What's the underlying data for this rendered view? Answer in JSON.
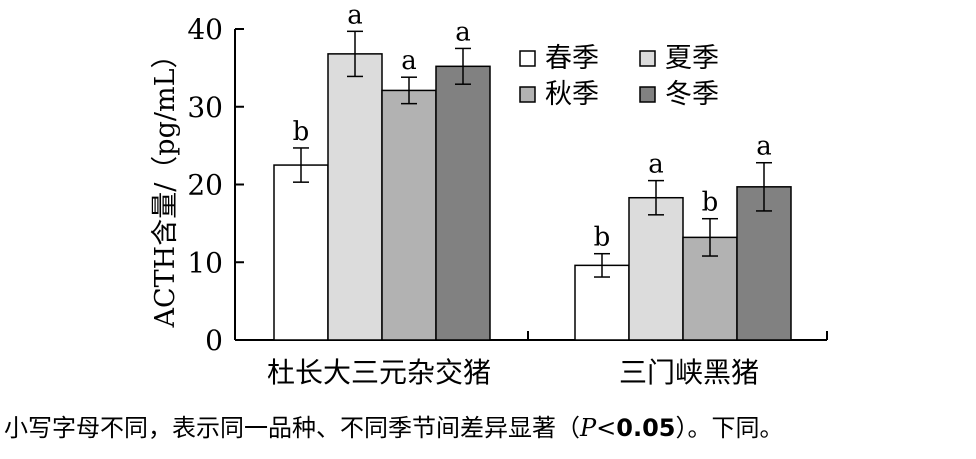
{
  "chart_data": {
    "type": "bar",
    "categories": [
      "杜长大三元杂交猪",
      "三门峡黑猪"
    ],
    "ylabel": "ACTH含量/（pg/mL）",
    "ylim": [
      0,
      40
    ],
    "yticks": [
      0,
      10,
      20,
      30,
      40
    ],
    "grid": false,
    "legend_position": "top-right",
    "series": [
      {
        "name": "春季",
        "color": "#ffffff",
        "values": [
          22.5,
          9.6
        ],
        "errors": [
          2.2,
          1.5
        ],
        "letters": [
          "b",
          "b"
        ]
      },
      {
        "name": "夏季",
        "color": "#dcdcdc",
        "values": [
          36.8,
          18.3
        ],
        "errors": [
          2.9,
          2.2
        ],
        "letters": [
          "a",
          "a"
        ]
      },
      {
        "name": "秋季",
        "color": "#b2b2b2",
        "values": [
          32.1,
          13.2
        ],
        "errors": [
          1.7,
          2.4
        ],
        "letters": [
          "a",
          "b"
        ]
      },
      {
        "name": "冬季",
        "color": "#818181",
        "values": [
          35.2,
          19.7
        ],
        "errors": [
          2.3,
          3.1
        ],
        "letters": [
          "a",
          "a"
        ]
      }
    ]
  },
  "caption": {
    "before": "小写字母不同，表示同一品种、不同季节间差异显著（",
    "p_symbol": "P",
    "lt": "<",
    "p_value": "0.05",
    "after": "）。下同。"
  }
}
